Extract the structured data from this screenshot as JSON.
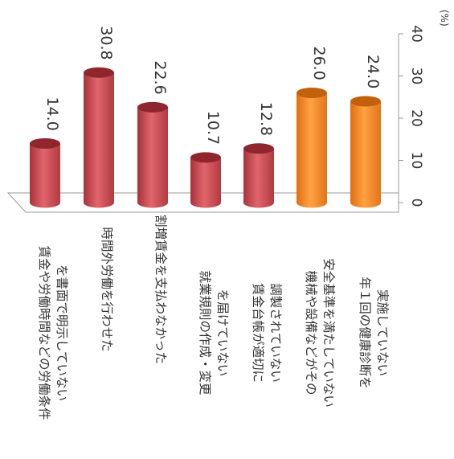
{
  "chart_data": {
    "type": "bar",
    "orientation": "rotated-90-clockwise",
    "title": "",
    "xlabel": "",
    "ylabel": "",
    "unit_label": "(%)",
    "ylim": [
      0,
      40
    ],
    "yticks": [
      "0",
      "10",
      "20",
      "30",
      "40"
    ],
    "categories": [
      [
        "賃金や労働時間などの労働条件",
        "を書面で明示していない"
      ],
      [
        "時間外労働を行わせた"
      ],
      [
        "割増賃金を支払わなかった"
      ],
      [
        "就業規則の作成・変更",
        "を届けていない"
      ],
      [
        "賃金台帳が適切に",
        "調製されていない"
      ],
      [
        "機械や設備などがその",
        "安全基準を満たしていない"
      ],
      [
        "年１回の健康診断を",
        "実施していない"
      ]
    ],
    "values": [
      14.0,
      30.8,
      22.6,
      10.7,
      12.8,
      26.0,
      24.0
    ],
    "value_labels": [
      "14.0",
      "30.8",
      "22.6",
      "10.7",
      "12.8",
      "26.0",
      "24.0"
    ],
    "bar_colors": [
      "#c8444a",
      "#c8444a",
      "#c8444a",
      "#c8444a",
      "#c8444a",
      "#f0821e",
      "#f0821e"
    ],
    "grid": false,
    "legend": "none"
  }
}
